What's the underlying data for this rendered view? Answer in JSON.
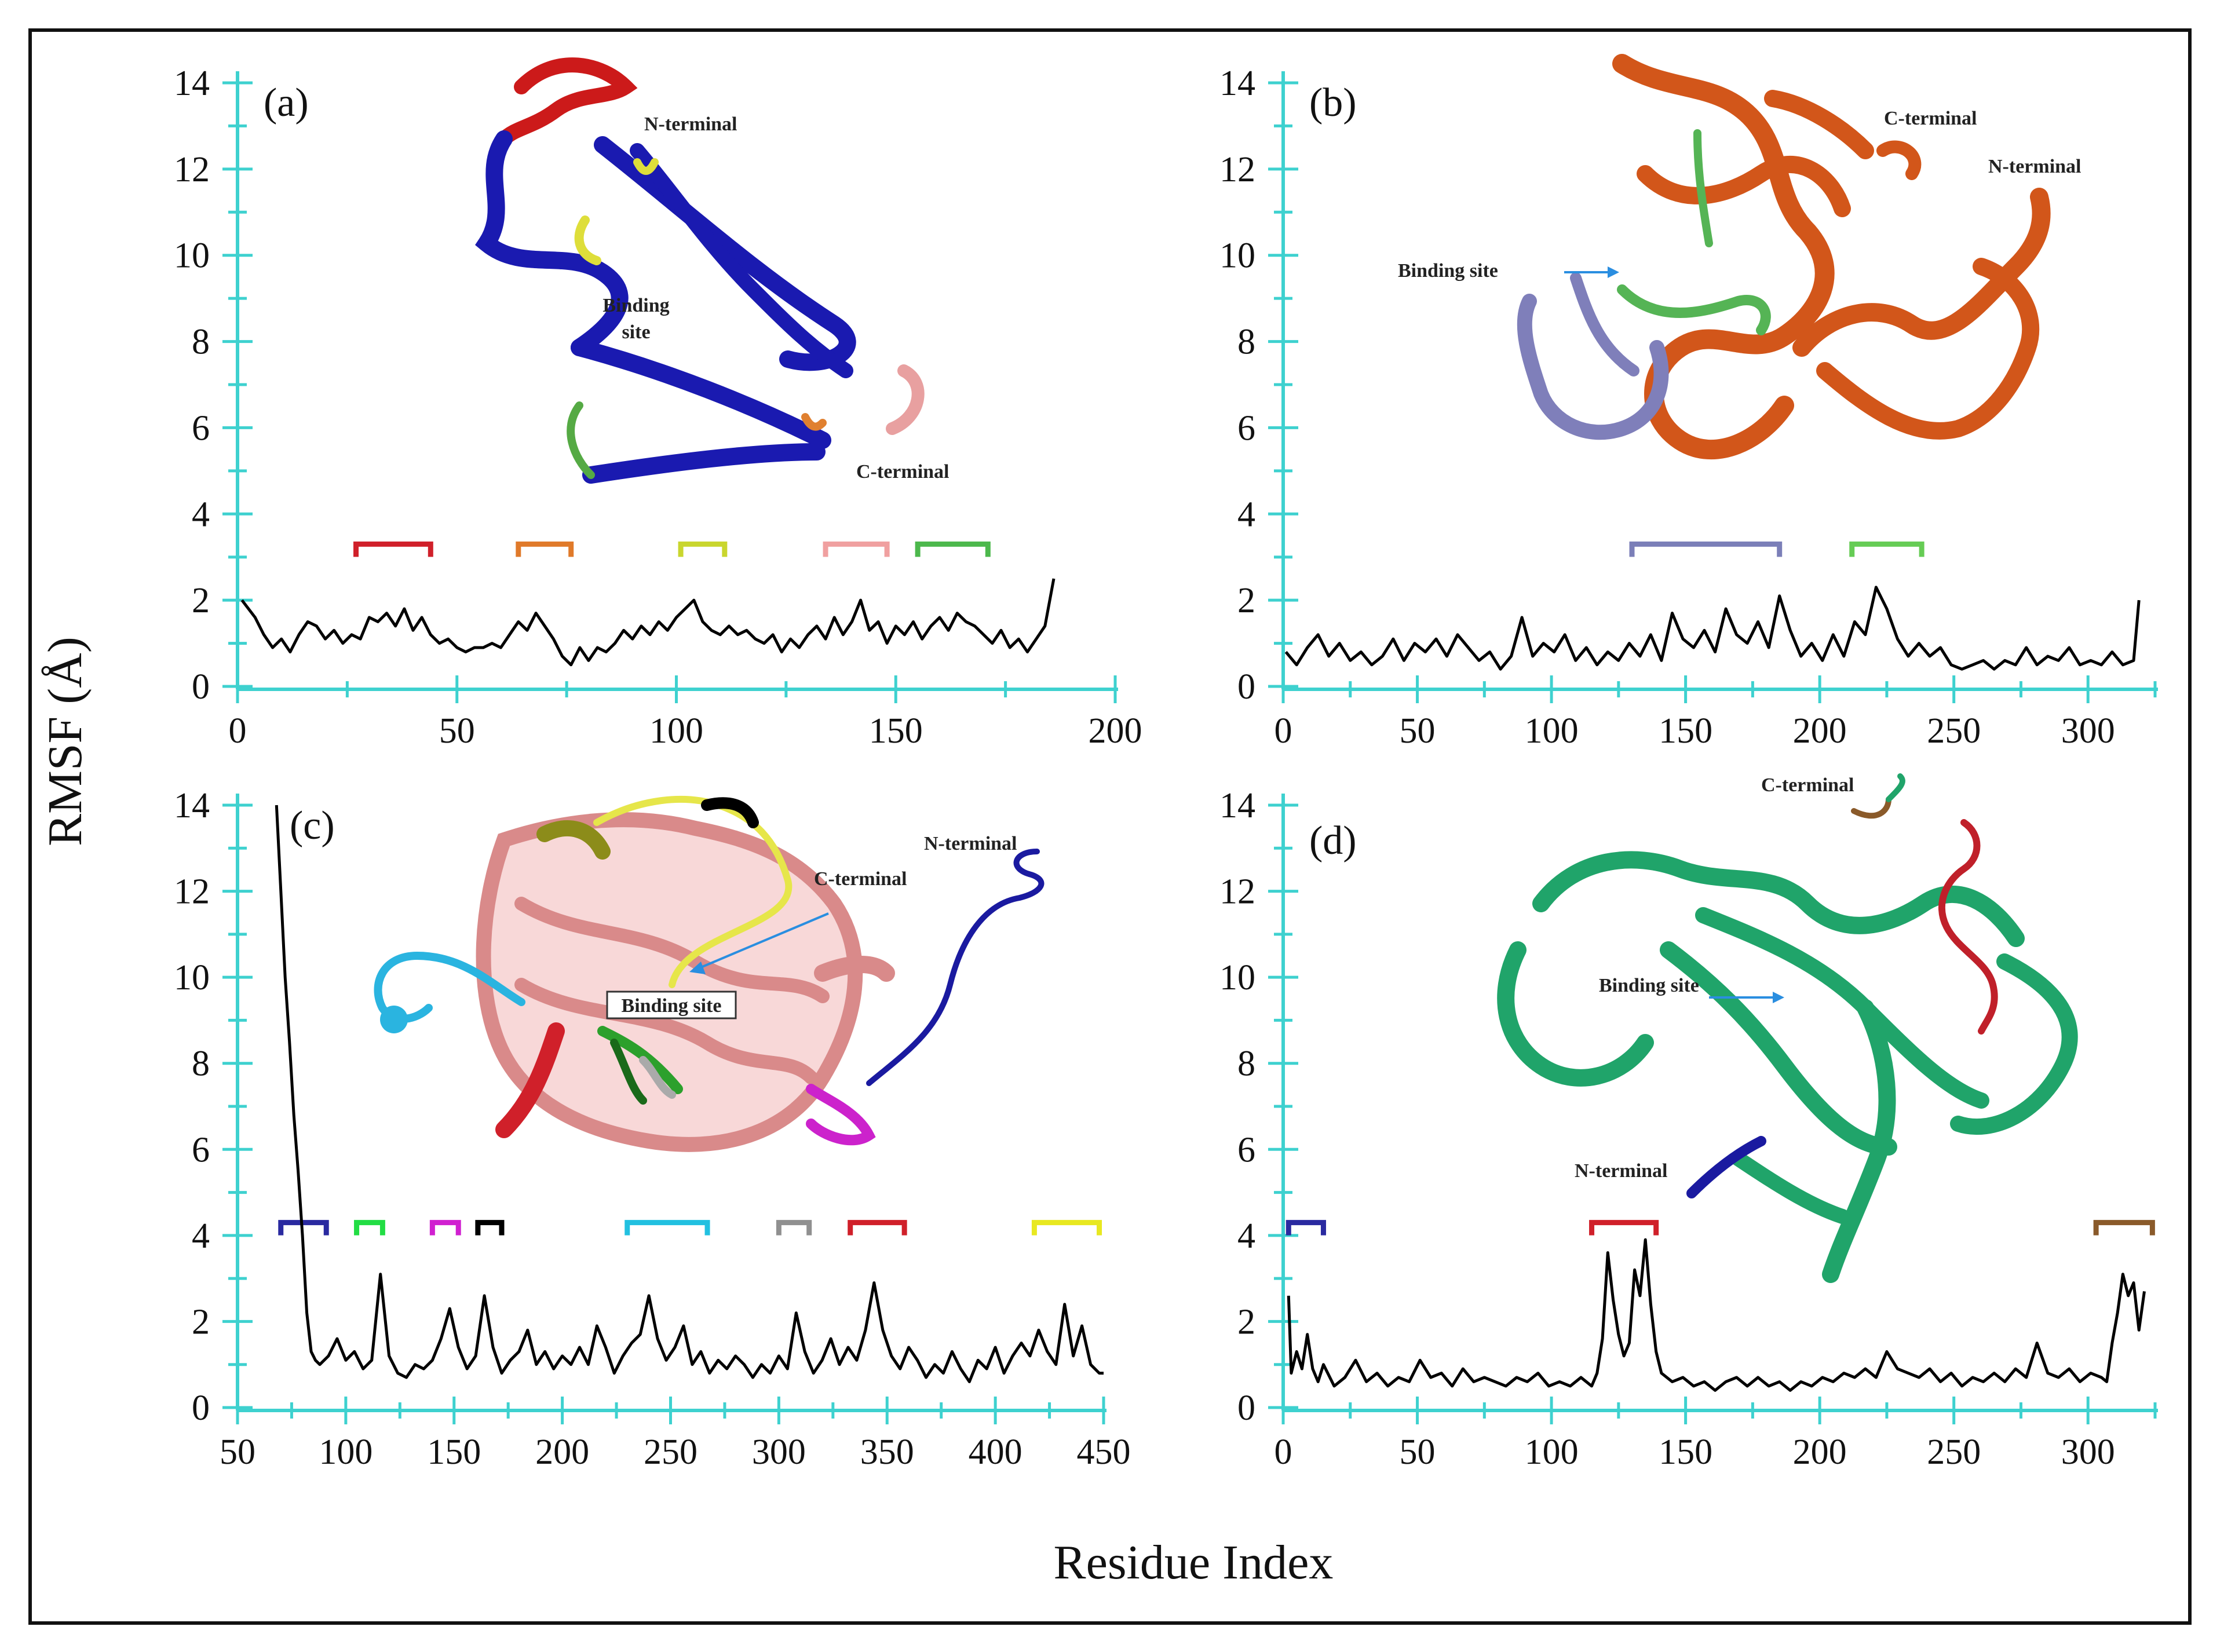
{
  "figure": {
    "ylabel": "RMSF (Å)",
    "xlabel": "Residue Index"
  },
  "chart_data": [
    {
      "type": "line",
      "panel_label": "(a)",
      "xlim": [
        0,
        200
      ],
      "ylim": [
        0,
        14
      ],
      "xticks": [
        0,
        50,
        100,
        150,
        200
      ],
      "yticks": [
        0,
        2,
        4,
        6,
        8,
        10,
        12,
        14
      ],
      "annotations": [
        "N-terminal",
        "Binding site",
        "C-terminal"
      ],
      "brackets": [
        {
          "start": 27,
          "end": 44,
          "color": "#d0202a"
        },
        {
          "start": 64,
          "end": 76,
          "color": "#e07a2a"
        },
        {
          "start": 101,
          "end": 111,
          "color": "#c9d62e"
        },
        {
          "start": 134,
          "end": 148,
          "color": "#f0a0a0"
        },
        {
          "start": 155,
          "end": 171,
          "color": "#4cb84c"
        }
      ],
      "series": [
        {
          "color": "#000000",
          "x": [
            1,
            4,
            6,
            8,
            10,
            12,
            14,
            16,
            18,
            20,
            22,
            24,
            26,
            28,
            30,
            32,
            34,
            36,
            38,
            40,
            42,
            44,
            46,
            48,
            50,
            52,
            54,
            56,
            58,
            60,
            62,
            64,
            66,
            68,
            70,
            72,
            74,
            76,
            78,
            80,
            82,
            84,
            86,
            88,
            90,
            92,
            94,
            96,
            98,
            100,
            102,
            104,
            106,
            108,
            110,
            112,
            114,
            116,
            118,
            120,
            122,
            124,
            126,
            128,
            130,
            132,
            134,
            136,
            138,
            140,
            142,
            144,
            146,
            148,
            150,
            152,
            154,
            156,
            158,
            160,
            162,
            164,
            166,
            168,
            170,
            172,
            174,
            176,
            178,
            180,
            182,
            184,
            186
          ],
          "y": [
            2.0,
            1.6,
            1.2,
            0.9,
            1.1,
            0.8,
            1.2,
            1.5,
            1.4,
            1.1,
            1.3,
            1.0,
            1.2,
            1.1,
            1.6,
            1.5,
            1.7,
            1.4,
            1.8,
            1.3,
            1.6,
            1.2,
            1.0,
            1.1,
            0.9,
            0.8,
            0.9,
            0.9,
            1.0,
            0.9,
            1.2,
            1.5,
            1.3,
            1.7,
            1.4,
            1.1,
            0.7,
            0.5,
            0.9,
            0.6,
            0.9,
            0.8,
            1.0,
            1.3,
            1.1,
            1.4,
            1.2,
            1.5,
            1.3,
            1.6,
            1.8,
            2.0,
            1.5,
            1.3,
            1.2,
            1.4,
            1.2,
            1.3,
            1.1,
            1.0,
            1.2,
            0.8,
            1.1,
            0.9,
            1.2,
            1.4,
            1.1,
            1.6,
            1.2,
            1.5,
            2.0,
            1.3,
            1.5,
            1.0,
            1.4,
            1.2,
            1.5,
            1.1,
            1.4,
            1.6,
            1.3,
            1.7,
            1.5,
            1.4,
            1.2,
            1.0,
            1.3,
            0.9,
            1.1,
            0.8,
            1.1,
            1.4,
            2.5
          ]
        }
      ]
    },
    {
      "type": "line",
      "panel_label": "(b)",
      "xlim": [
        0,
        325
      ],
      "ylim": [
        0,
        14
      ],
      "xticks": [
        0,
        50,
        100,
        150,
        200,
        250,
        300
      ],
      "yticks": [
        0,
        2,
        4,
        6,
        8,
        10,
        12,
        14
      ],
      "annotations": [
        "C-terminal",
        "N-terminal",
        "Binding site"
      ],
      "brackets": [
        {
          "start": 130,
          "end": 185,
          "color": "#7b7fb8"
        },
        {
          "start": 212,
          "end": 238,
          "color": "#66cc55"
        }
      ],
      "series": [
        {
          "color": "#000000",
          "x": [
            1,
            5,
            9,
            13,
            17,
            21,
            25,
            29,
            33,
            37,
            41,
            45,
            49,
            53,
            57,
            61,
            65,
            69,
            73,
            77,
            81,
            85,
            89,
            93,
            97,
            101,
            105,
            109,
            113,
            117,
            121,
            125,
            129,
            133,
            137,
            141,
            145,
            149,
            153,
            157,
            161,
            165,
            169,
            173,
            177,
            181,
            185,
            189,
            193,
            197,
            201,
            205,
            209,
            213,
            217,
            221,
            225,
            229,
            233,
            237,
            241,
            245,
            249,
            253,
            257,
            261,
            265,
            269,
            273,
            277,
            281,
            285,
            289,
            293,
            297,
            301,
            305,
            309,
            313,
            317,
            319
          ],
          "y": [
            0.8,
            0.5,
            0.9,
            1.2,
            0.7,
            1.0,
            0.6,
            0.8,
            0.5,
            0.7,
            1.1,
            0.6,
            1.0,
            0.8,
            1.1,
            0.7,
            1.2,
            0.9,
            0.6,
            0.8,
            0.4,
            0.7,
            1.6,
            0.7,
            1.0,
            0.8,
            1.2,
            0.6,
            0.9,
            0.5,
            0.8,
            0.6,
            1.0,
            0.7,
            1.2,
            0.6,
            1.7,
            1.1,
            0.9,
            1.3,
            0.8,
            1.8,
            1.2,
            1.0,
            1.5,
            0.9,
            2.1,
            1.3,
            0.7,
            1.0,
            0.6,
            1.2,
            0.7,
            1.5,
            1.2,
            2.3,
            1.8,
            1.1,
            0.7,
            1.0,
            0.7,
            0.9,
            0.5,
            0.4,
            0.5,
            0.6,
            0.4,
            0.6,
            0.5,
            0.9,
            0.5,
            0.7,
            0.6,
            0.9,
            0.5,
            0.6,
            0.5,
            0.8,
            0.5,
            0.6,
            2.0
          ]
        }
      ]
    },
    {
      "type": "line",
      "panel_label": "(c)",
      "xlim": [
        50,
        450
      ],
      "ylim": [
        0,
        14
      ],
      "xticks": [
        50,
        100,
        150,
        200,
        250,
        300,
        350,
        400,
        450
      ],
      "yticks": [
        0,
        2,
        4,
        6,
        8,
        10,
        12,
        14
      ],
      "annotations": [
        "N-terminal",
        "C-terminal",
        "Binding site"
      ],
      "brackets": [
        {
          "start": 70,
          "end": 91,
          "color": "#2a2aa0"
        },
        {
          "start": 105,
          "end": 117,
          "color": "#22dd44"
        },
        {
          "start": 140,
          "end": 152,
          "color": "#d020d0"
        },
        {
          "start": 161,
          "end": 172,
          "color": "#000000"
        },
        {
          "start": 230,
          "end": 267,
          "color": "#22c0e0"
        },
        {
          "start": 300,
          "end": 314,
          "color": "#909090"
        },
        {
          "start": 333,
          "end": 358,
          "color": "#d0202a"
        },
        {
          "start": 418,
          "end": 448,
          "color": "#e8e820"
        }
      ],
      "series": [
        {
          "color": "#000000",
          "x": [
            68,
            70,
            72,
            74,
            76,
            78,
            80,
            82,
            84,
            86,
            88,
            92,
            96,
            100,
            104,
            108,
            112,
            116,
            120,
            124,
            128,
            132,
            136,
            140,
            144,
            148,
            152,
            156,
            160,
            164,
            168,
            172,
            176,
            180,
            184,
            188,
            192,
            196,
            200,
            204,
            208,
            212,
            216,
            220,
            224,
            228,
            232,
            236,
            240,
            244,
            248,
            252,
            256,
            260,
            264,
            268,
            272,
            276,
            280,
            284,
            288,
            292,
            296,
            300,
            304,
            308,
            312,
            316,
            320,
            324,
            328,
            332,
            336,
            340,
            344,
            348,
            352,
            356,
            360,
            364,
            368,
            372,
            376,
            380,
            384,
            388,
            392,
            396,
            400,
            404,
            408,
            412,
            416,
            420,
            424,
            428,
            432,
            436,
            440,
            444,
            448,
            450
          ],
          "y": [
            14.0,
            12.0,
            10.0,
            8.5,
            6.8,
            5.5,
            4.0,
            2.2,
            1.3,
            1.1,
            1.0,
            1.2,
            1.6,
            1.1,
            1.3,
            0.9,
            1.1,
            3.1,
            1.2,
            0.8,
            0.7,
            1.0,
            0.9,
            1.1,
            1.6,
            2.3,
            1.4,
            0.9,
            1.2,
            2.6,
            1.4,
            0.8,
            1.1,
            1.3,
            1.8,
            1.0,
            1.3,
            0.9,
            1.2,
            1.0,
            1.4,
            1.0,
            1.9,
            1.4,
            0.8,
            1.2,
            1.5,
            1.7,
            2.6,
            1.6,
            1.1,
            1.4,
            1.9,
            1.0,
            1.3,
            0.8,
            1.1,
            0.9,
            1.2,
            1.0,
            0.7,
            1.0,
            0.8,
            1.2,
            0.9,
            2.2,
            1.3,
            0.8,
            1.1,
            1.6,
            1.0,
            1.4,
            1.1,
            1.8,
            2.9,
            1.8,
            1.2,
            0.9,
            1.4,
            1.1,
            0.7,
            1.0,
            0.8,
            1.3,
            0.9,
            0.6,
            1.1,
            0.9,
            1.4,
            0.8,
            1.2,
            1.5,
            1.2,
            1.8,
            1.3,
            1.0,
            2.4,
            1.2,
            1.9,
            1.0,
            0.8,
            0.8
          ]
        }
      ]
    },
    {
      "type": "line",
      "panel_label": "(d)",
      "xlim": [
        0,
        325
      ],
      "ylim": [
        0,
        14
      ],
      "xticks": [
        0,
        50,
        100,
        150,
        200,
        250,
        300
      ],
      "yticks": [
        0,
        2,
        4,
        6,
        8,
        10,
        12,
        14
      ],
      "annotations": [
        "C-terminal",
        "Binding site",
        "N-terminal"
      ],
      "brackets": [
        {
          "start": 2,
          "end": 15,
          "color": "#2a2aa0"
        },
        {
          "start": 115,
          "end": 139,
          "color": "#d0202a"
        },
        {
          "start": 303,
          "end": 324,
          "color": "#8a5a2a"
        }
      ],
      "series": [
        {
          "color": "#000000",
          "x": [
            2,
            3,
            5,
            7,
            9,
            11,
            13,
            15,
            19,
            23,
            27,
            31,
            35,
            39,
            43,
            47,
            51,
            55,
            59,
            63,
            67,
            71,
            75,
            79,
            83,
            87,
            91,
            95,
            99,
            103,
            107,
            111,
            115,
            117,
            119,
            121,
            123,
            125,
            127,
            129,
            131,
            133,
            135,
            137,
            139,
            141,
            145,
            149,
            153,
            157,
            161,
            165,
            169,
            173,
            177,
            181,
            185,
            189,
            193,
            197,
            201,
            205,
            209,
            213,
            217,
            221,
            225,
            229,
            233,
            237,
            241,
            245,
            249,
            253,
            257,
            261,
            265,
            269,
            273,
            277,
            281,
            285,
            289,
            293,
            297,
            301,
            305,
            307,
            309,
            311,
            313,
            315,
            317,
            319,
            321
          ],
          "y": [
            2.6,
            0.8,
            1.3,
            0.9,
            1.7,
            0.9,
            0.6,
            1.0,
            0.5,
            0.7,
            1.1,
            0.6,
            0.8,
            0.5,
            0.7,
            0.6,
            1.1,
            0.7,
            0.8,
            0.5,
            0.9,
            0.6,
            0.7,
            0.6,
            0.5,
            0.7,
            0.6,
            0.8,
            0.5,
            0.6,
            0.5,
            0.7,
            0.5,
            0.8,
            1.6,
            3.6,
            2.5,
            1.7,
            1.2,
            1.5,
            3.2,
            2.6,
            3.9,
            2.4,
            1.3,
            0.8,
            0.6,
            0.7,
            0.5,
            0.6,
            0.4,
            0.6,
            0.7,
            0.5,
            0.7,
            0.5,
            0.6,
            0.4,
            0.6,
            0.5,
            0.7,
            0.6,
            0.8,
            0.7,
            0.9,
            0.7,
            1.3,
            0.9,
            0.8,
            0.7,
            0.9,
            0.6,
            0.8,
            0.5,
            0.7,
            0.6,
            0.8,
            0.6,
            0.9,
            0.7,
            1.5,
            0.8,
            0.7,
            0.9,
            0.6,
            0.8,
            0.7,
            0.6,
            1.5,
            2.2,
            3.1,
            2.6,
            2.9,
            1.8,
            2.7
          ]
        }
      ]
    }
  ]
}
